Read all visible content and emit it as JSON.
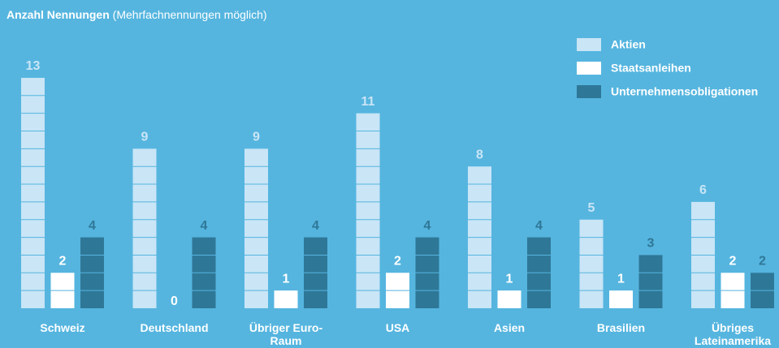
{
  "chart_data": {
    "type": "unit-bar",
    "title": "Anzahl Nennungen",
    "subtitle": "(Mehrfachnennungen möglich)",
    "categories": [
      "Schweiz",
      "Deutschland",
      "Übriger Euro-Raum",
      "USA",
      "Asien",
      "Brasilien",
      "Übriges Lateinamerika"
    ],
    "series": [
      {
        "name": "Aktien",
        "color": "#c9e5f6",
        "values": [
          13,
          9,
          9,
          11,
          8,
          5,
          6
        ]
      },
      {
        "name": "Staatsanleihen",
        "color": "#ffffff",
        "values": [
          2,
          0,
          1,
          2,
          1,
          1,
          2
        ]
      },
      {
        "name": "Unternehmensobligationen",
        "color": "#2f7797",
        "values": [
          4,
          4,
          4,
          4,
          4,
          3,
          2
        ]
      }
    ],
    "legend": "top-right"
  }
}
